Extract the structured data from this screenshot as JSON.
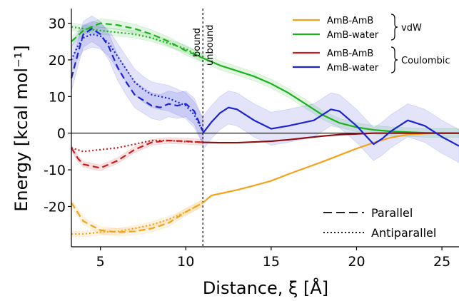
{
  "chart_data": {
    "type": "line",
    "xlabel": "Distance, ξ [Å]",
    "ylabel": "Energy [kcal mol⁻¹]",
    "xlim": [
      3.3,
      26
    ],
    "ylim": [
      -31,
      34
    ],
    "xticks": [
      5,
      10,
      15,
      20,
      25
    ],
    "yticks": [
      30,
      20,
      10,
      0,
      -10,
      -20
    ],
    "grid": false,
    "legend_placement": "top-right",
    "colors": {
      "orange": "#f5a21b",
      "green": "#19b31c",
      "red": "#cc1c1c",
      "blue": "#1a23d6",
      "darkred": "#8c1010"
    },
    "annotations": {
      "bound": "bound",
      "unbound": "unbound",
      "boundary_x": 11
    },
    "legend": {
      "entries": [
        {
          "label": "AmB-AmB",
          "color": "#f5a21b"
        },
        {
          "label": "AmB-water",
          "color": "#19b31c"
        },
        {
          "label": "AmB-AmB",
          "color": "#cc1c1c"
        },
        {
          "label": "AmB-water",
          "color": "#1a23d6"
        }
      ],
      "groups": [
        "vdW",
        "Coulombic"
      ],
      "styles": [
        {
          "label": "Parallel",
          "dash": "dashed"
        },
        {
          "label": "Antiparallel",
          "dash": "dotted"
        }
      ]
    },
    "series": [
      {
        "key": "orange_solid",
        "color": "#f5a21b",
        "dash": "solid",
        "x": [
          11,
          11.5,
          12,
          13,
          14,
          15,
          16,
          17,
          18,
          19,
          20,
          21,
          22,
          23,
          24,
          25,
          26
        ],
        "y": [
          -19,
          -17,
          -16.5,
          -15.5,
          -14.3,
          -13,
          -11.2,
          -9.5,
          -7.8,
          -6,
          -4.2,
          -2.6,
          -1.2,
          -0.4,
          -0.1,
          0,
          0
        ]
      },
      {
        "key": "orange_dashed",
        "color": "#f5a21b",
        "dash": "dashed",
        "x": [
          3.3,
          4,
          5,
          6,
          7,
          8,
          9,
          10,
          11
        ],
        "y": [
          -19,
          -24,
          -26.5,
          -27,
          -26.8,
          -26,
          -24.5,
          -21.5,
          -19
        ]
      },
      {
        "key": "orange_dotted",
        "color": "#f5a21b",
        "dash": "dotted",
        "x": [
          3.3,
          4,
          5,
          6,
          7,
          8,
          9,
          10,
          11
        ],
        "y": [
          -27.5,
          -27.5,
          -27,
          -26.8,
          -26,
          -25,
          -23.5,
          -21.5,
          -19
        ]
      },
      {
        "key": "green_solid",
        "color": "#19b31c",
        "dash": "solid",
        "x": [
          11,
          12,
          13,
          14,
          15,
          16,
          17,
          18,
          19,
          20,
          21,
          22,
          23,
          24,
          25,
          26
        ],
        "y": [
          20.5,
          18.5,
          17,
          15.5,
          13.5,
          11,
          8,
          5,
          2.8,
          1.6,
          0.9,
          0.5,
          0.3,
          0.1,
          0,
          0
        ]
      },
      {
        "key": "green_dashed",
        "color": "#19b31c",
        "dash": "dashed",
        "x": [
          3.3,
          4,
          5,
          6,
          7,
          8,
          9,
          10,
          11
        ],
        "y": [
          25,
          28,
          30,
          29.5,
          28.5,
          27,
          25,
          22.5,
          20.5
        ]
      },
      {
        "key": "green_dotted",
        "color": "#19b31c",
        "dash": "dotted",
        "x": [
          3.3,
          4,
          5,
          6,
          7,
          8,
          9,
          10,
          11
        ],
        "y": [
          29,
          28.5,
          28,
          27.5,
          27,
          26,
          24.5,
          23,
          20.5
        ]
      },
      {
        "key": "red_solid",
        "color": "#8c1010",
        "dash": "solid",
        "x": [
          11,
          12,
          13,
          14,
          15,
          16,
          17,
          18,
          19,
          20,
          21,
          22,
          23,
          24,
          25,
          26
        ],
        "y": [
          -2.5,
          -2.6,
          -2.6,
          -2.4,
          -2.2,
          -1.8,
          -1.3,
          -0.8,
          -0.4,
          -0.2,
          0,
          0,
          0,
          0,
          0,
          0
        ]
      },
      {
        "key": "red_dashed",
        "color": "#cc1c1c",
        "dash": "dashed",
        "x": [
          3.3,
          3.7,
          4,
          5,
          6,
          7,
          8,
          9,
          10,
          11
        ],
        "y": [
          -4,
          -7,
          -8.5,
          -9.5,
          -7.5,
          -4.5,
          -2.5,
          -2,
          -2.2,
          -2.5
        ]
      },
      {
        "key": "red_dotted",
        "color": "#cc1c1c",
        "dash": "dotted",
        "x": [
          3.3,
          4,
          5,
          6,
          7,
          8,
          9,
          10,
          11
        ],
        "y": [
          -4,
          -5,
          -4.5,
          -4,
          -3,
          -2,
          -2,
          -2.3,
          -2.5
        ]
      },
      {
        "key": "blue_solid",
        "color": "#1a23d6",
        "dash": "solid",
        "x": [
          11,
          11.5,
          12,
          12.5,
          13,
          14,
          15,
          16,
          17,
          17.5,
          18,
          18.5,
          19,
          20,
          21,
          21.5,
          22,
          23,
          24,
          25,
          26
        ],
        "y": [
          0,
          3,
          5.5,
          7,
          6.5,
          3.5,
          1.2,
          2,
          3,
          3.5,
          5,
          6.5,
          6,
          2,
          -3,
          -1.5,
          0.5,
          3.5,
          2,
          -1,
          -3.5
        ]
      },
      {
        "key": "blue_dashed",
        "color": "#1a23d6",
        "dash": "dashed",
        "x": [
          3.3,
          3.7,
          4,
          4.5,
          5,
          5.5,
          6,
          6.5,
          7,
          7.5,
          8,
          8.5,
          9,
          9.5,
          10,
          10.5,
          11
        ],
        "y": [
          15,
          22,
          27,
          28.5,
          27,
          23.5,
          18,
          14,
          10.5,
          9,
          7.5,
          7,
          8,
          7.5,
          8,
          6,
          0.5
        ]
      },
      {
        "key": "blue_dotted",
        "color": "#1a23d6",
        "dash": "dotted",
        "x": [
          3.3,
          3.7,
          4,
          4.5,
          5,
          5.5,
          6,
          6.5,
          7,
          7.5,
          8,
          8.5,
          9,
          9.5,
          10,
          10.5,
          11
        ],
        "y": [
          20,
          24,
          26,
          27,
          26.5,
          24.5,
          21,
          17.5,
          14,
          12,
          10.5,
          10,
          9.5,
          8.5,
          7.5,
          5,
          0.5
        ]
      }
    ]
  }
}
